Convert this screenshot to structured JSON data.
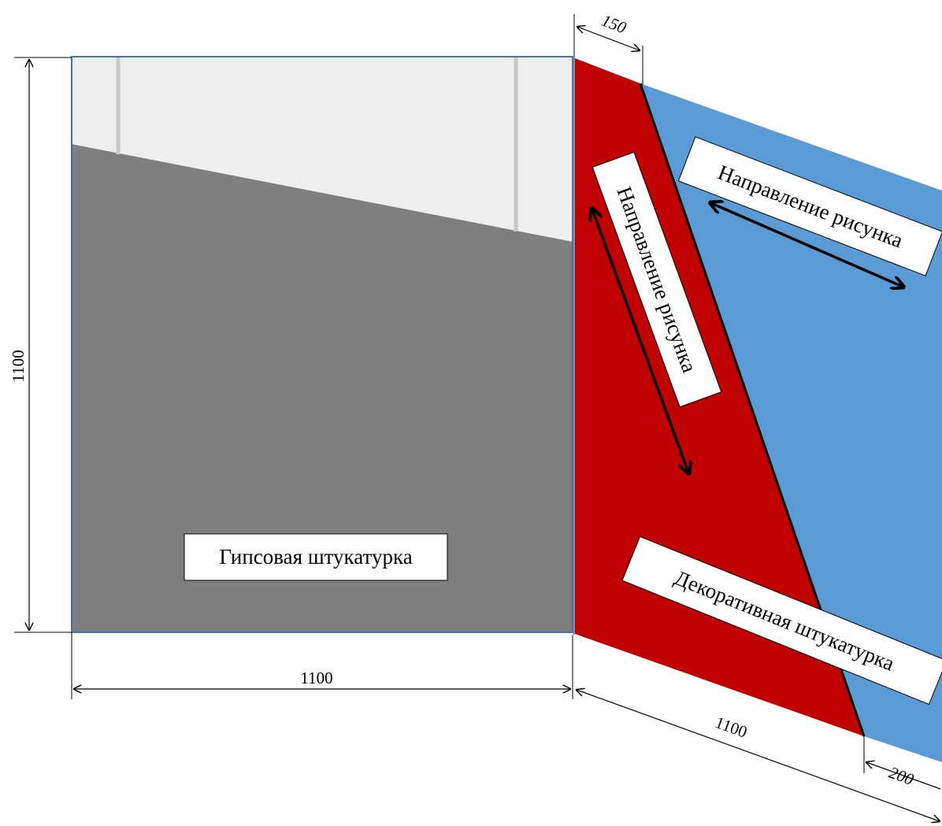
{
  "diagram": {
    "labels": {
      "gypsum_plaster": "Гипсовая штукатурка",
      "decorative_plaster": "Декоративная штукатурка",
      "pattern_direction_red": "Направление рисунка",
      "pattern_direction_blue": "Направление рисунка"
    },
    "dimensions": {
      "left_height": "1100",
      "left_width": "1100",
      "right_width": "1100",
      "top_offset": "150",
      "bottom_offset": "200"
    },
    "colors": {
      "gypsum_fill": "#7f7f7f",
      "unfinished_top": "#eeeeee",
      "panel_outline": "#4a72a8",
      "red_panel": "#c00000",
      "blue_panel": "#5b9bd5",
      "seam_posts": "#c8c8c8"
    }
  }
}
